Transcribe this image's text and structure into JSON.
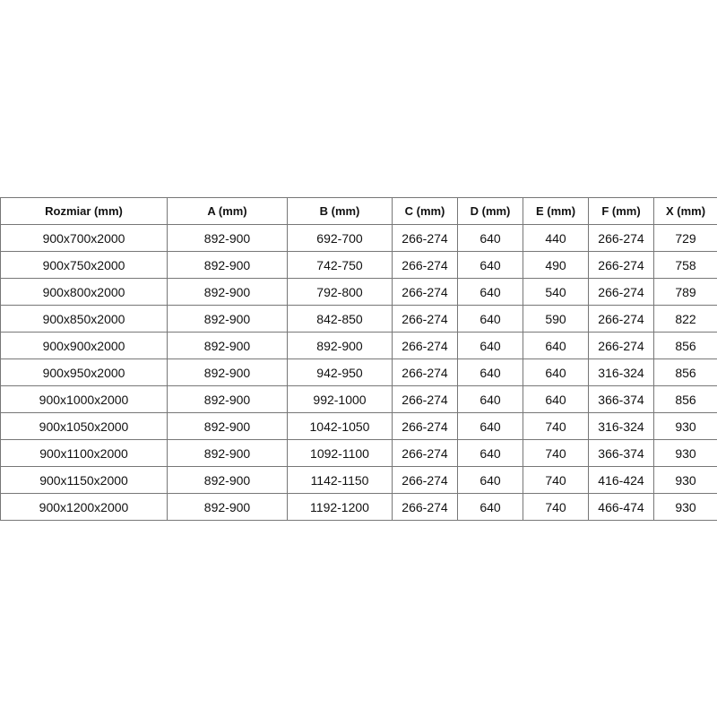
{
  "table": {
    "headers": [
      "Rozmiar (mm)",
      "A (mm)",
      "B (mm)",
      "C (mm)",
      "D (mm)",
      "E (mm)",
      "F (mm)",
      "X (mm)"
    ],
    "rows": [
      [
        "900x700x2000",
        "892-900",
        "692-700",
        "266-274",
        "640",
        "440",
        "266-274",
        "729"
      ],
      [
        "900x750x2000",
        "892-900",
        "742-750",
        "266-274",
        "640",
        "490",
        "266-274",
        "758"
      ],
      [
        "900x800x2000",
        "892-900",
        "792-800",
        "266-274",
        "640",
        "540",
        "266-274",
        "789"
      ],
      [
        "900x850x2000",
        "892-900",
        "842-850",
        "266-274",
        "640",
        "590",
        "266-274",
        "822"
      ],
      [
        "900x900x2000",
        "892-900",
        "892-900",
        "266-274",
        "640",
        "640",
        "266-274",
        "856"
      ],
      [
        "900x950x2000",
        "892-900",
        "942-950",
        "266-274",
        "640",
        "640",
        "316-324",
        "856"
      ],
      [
        "900x1000x2000",
        "892-900",
        "992-1000",
        "266-274",
        "640",
        "640",
        "366-374",
        "856"
      ],
      [
        "900x1050x2000",
        "892-900",
        "1042-1050",
        "266-274",
        "640",
        "740",
        "316-324",
        "930"
      ],
      [
        "900x1100x2000",
        "892-900",
        "1092-1100",
        "266-274",
        "640",
        "740",
        "366-374",
        "930"
      ],
      [
        "900x1150x2000",
        "892-900",
        "1142-1150",
        "266-274",
        "640",
        "740",
        "416-424",
        "930"
      ],
      [
        "900x1200x2000",
        "892-900",
        "1192-1200",
        "266-274",
        "640",
        "740",
        "466-474",
        "930"
      ]
    ]
  }
}
